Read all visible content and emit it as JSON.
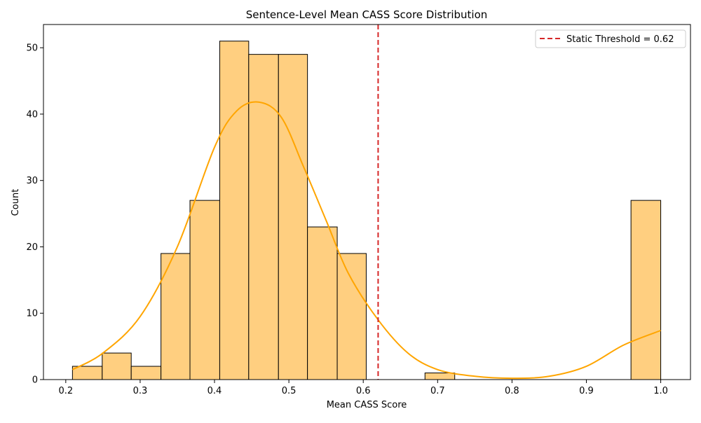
{
  "chart_data": {
    "type": "bar",
    "title": "Sentence-Level Mean CASS Score Distribution",
    "xlabel": "Mean CASS Score",
    "ylabel": "Count",
    "xlim": [
      0.17,
      1.04
    ],
    "ylim": [
      0,
      53.5
    ],
    "x_ticks": [
      0.2,
      0.3,
      0.4,
      0.5,
      0.6,
      0.7,
      0.8,
      0.9,
      1.0
    ],
    "x_tick_labels": [
      "0.2",
      "0.3",
      "0.4",
      "0.5",
      "0.6",
      "0.7",
      "0.8",
      "0.9",
      "1.0"
    ],
    "y_ticks": [
      0,
      10,
      20,
      30,
      40,
      50
    ],
    "y_tick_labels": [
      "0",
      "10",
      "20",
      "30",
      "40",
      "50"
    ],
    "bins": [
      {
        "x0": 0.209,
        "x1": 0.249,
        "count": 2
      },
      {
        "x0": 0.249,
        "x1": 0.288,
        "count": 4
      },
      {
        "x0": 0.288,
        "x1": 0.328,
        "count": 2
      },
      {
        "x0": 0.328,
        "x1": 0.367,
        "count": 19
      },
      {
        "x0": 0.367,
        "x1": 0.407,
        "count": 27
      },
      {
        "x0": 0.407,
        "x1": 0.446,
        "count": 51
      },
      {
        "x0": 0.446,
        "x1": 0.486,
        "count": 49
      },
      {
        "x0": 0.486,
        "x1": 0.525,
        "count": 49
      },
      {
        "x0": 0.525,
        "x1": 0.565,
        "count": 23
      },
      {
        "x0": 0.565,
        "x1": 0.604,
        "count": 19
      },
      {
        "x0": 0.604,
        "x1": 0.644,
        "count": 0
      },
      {
        "x0": 0.644,
        "x1": 0.683,
        "count": 0
      },
      {
        "x0": 0.683,
        "x1": 0.723,
        "count": 1
      },
      {
        "x0": 0.723,
        "x1": 0.763,
        "count": 0
      },
      {
        "x0": 0.763,
        "x1": 0.802,
        "count": 0
      },
      {
        "x0": 0.802,
        "x1": 0.842,
        "count": 0
      },
      {
        "x0": 0.842,
        "x1": 0.881,
        "count": 0
      },
      {
        "x0": 0.881,
        "x1": 0.921,
        "count": 0
      },
      {
        "x0": 0.921,
        "x1": 0.96,
        "count": 0
      },
      {
        "x0": 0.96,
        "x1": 1.0,
        "count": 27
      }
    ],
    "kde": {
      "x": [
        0.209,
        0.25,
        0.3,
        0.35,
        0.4,
        0.43,
        0.46,
        0.49,
        0.52,
        0.55,
        0.58,
        0.62,
        0.66,
        0.7,
        0.75,
        0.8,
        0.85,
        0.9,
        0.95,
        1.0
      ],
      "y": [
        1.5,
        4.0,
        9.5,
        20.0,
        35.0,
        40.5,
        41.8,
        39.5,
        32.0,
        24.0,
        16.0,
        9.0,
        4.0,
        1.5,
        0.5,
        0.2,
        0.5,
        2.0,
        5.2,
        7.4
      ]
    },
    "threshold": {
      "value": 0.62,
      "label": "Static Threshold = 0.62"
    },
    "legend_position": "top-right",
    "grid": false,
    "colors": {
      "bar_fill": "#ffcf80",
      "bar_edge": "#000000",
      "kde_line": "#ffa500",
      "threshold_line": "#d62728"
    }
  }
}
